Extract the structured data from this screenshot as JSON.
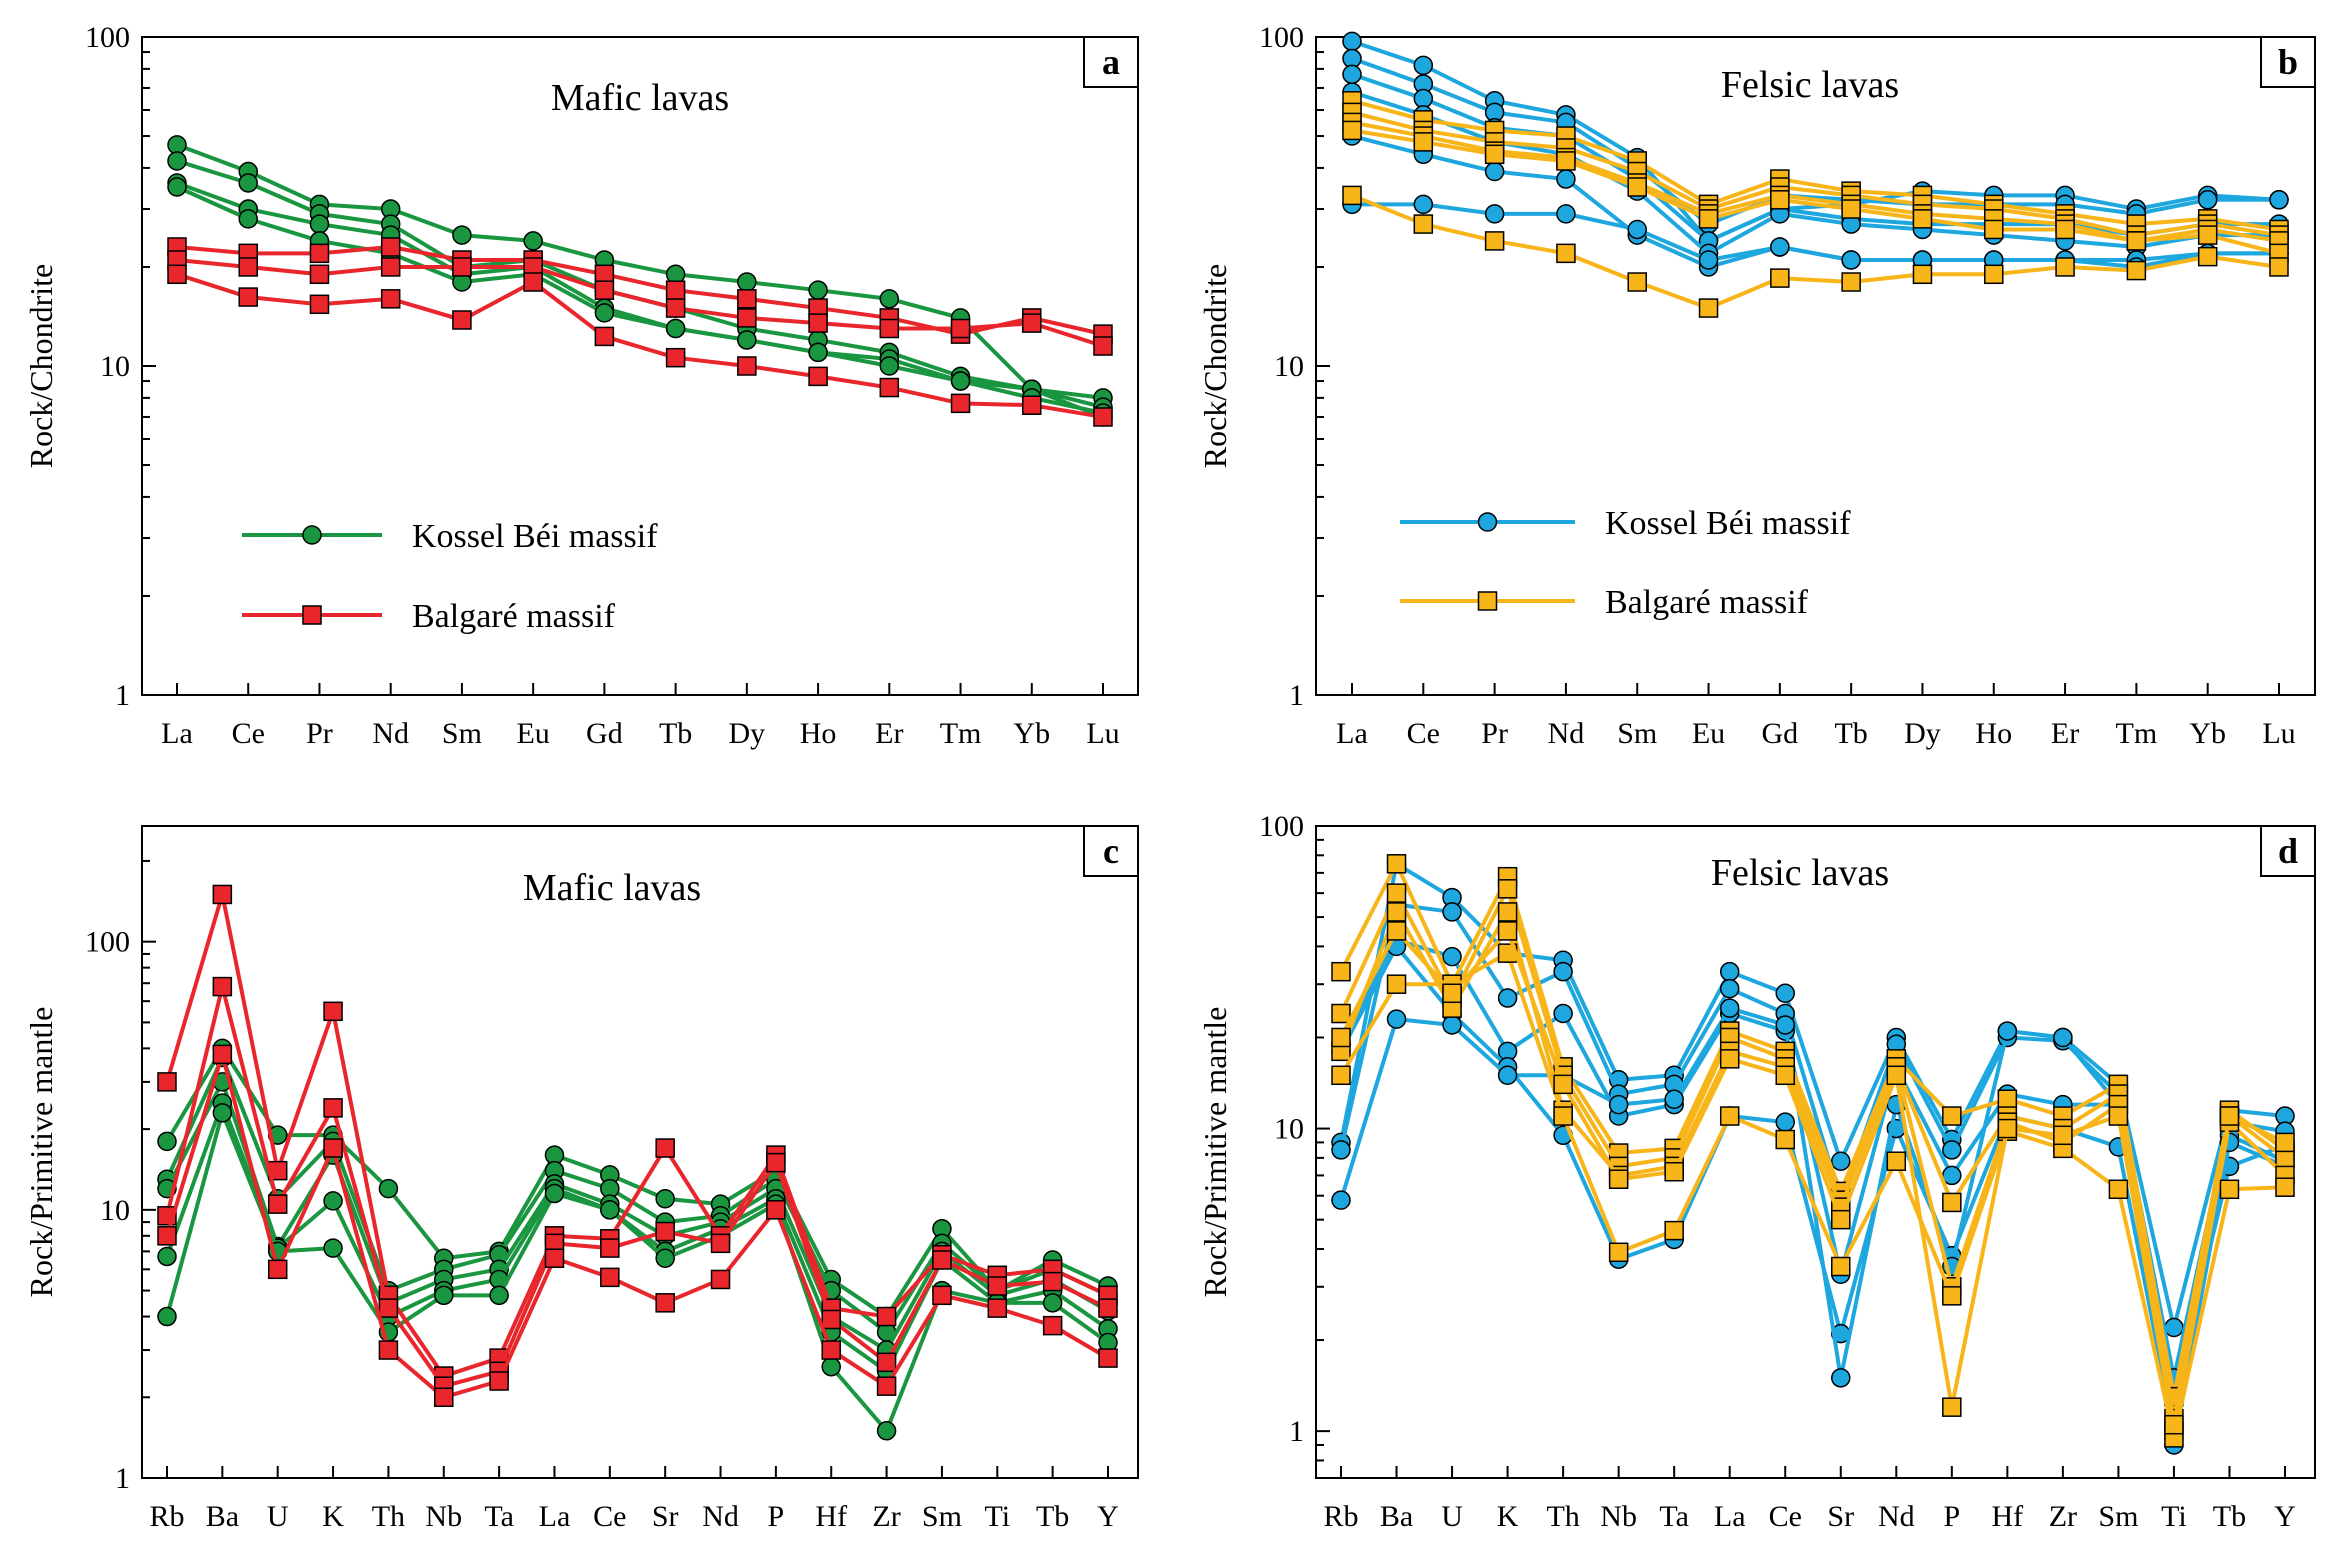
{
  "colors": {
    "green": "#1a9641",
    "red": "#e8262b",
    "blue": "#1ea7df",
    "yellow": "#f7b51a"
  },
  "chart_data": [
    {
      "panel": "a",
      "type": "line",
      "title": "Mafic lavas",
      "ylabel": "Rock/Chondrite",
      "yscale": "log",
      "ylim": [
        1,
        100
      ],
      "yticks": [
        "1",
        "10",
        "100"
      ],
      "categories": [
        "La",
        "Ce",
        "Pr",
        "Nd",
        "Sm",
        "Eu",
        "Gd",
        "Tb",
        "Dy",
        "Ho",
        "Er",
        "Tm",
        "Yb",
        "Lu"
      ],
      "legend": [
        {
          "label": "Kossel Béi massif",
          "color": "green",
          "marker": "circle"
        },
        {
          "label": "Balgaré massif",
          "color": "red",
          "marker": "square"
        }
      ],
      "series": [
        {
          "group": "Kossel Béi massif",
          "color": "green",
          "marker": "circle",
          "values": [
            47,
            39,
            31,
            30,
            25,
            24,
            21,
            19,
            18,
            17,
            16,
            14,
            8.5,
            7
          ]
        },
        {
          "group": "Kossel Béi massif",
          "color": "green",
          "marker": "circle",
          "values": [
            42,
            36,
            29,
            27,
            20,
            21,
            17,
            15,
            13,
            12,
            11,
            9.3,
            8.5,
            8
          ]
        },
        {
          "group": "Kossel Béi massif",
          "color": "green",
          "marker": "circle",
          "values": [
            36,
            30,
            27,
            25,
            19,
            20,
            15,
            13,
            12,
            11,
            10.5,
            9,
            8.5,
            7.5
          ]
        },
        {
          "group": "Kossel Béi massif",
          "color": "green",
          "marker": "circle",
          "values": [
            35,
            28,
            24,
            22,
            18,
            19,
            14.5,
            13,
            12,
            11,
            10,
            9,
            8,
            7.2
          ]
        },
        {
          "group": "Balgaré massif",
          "color": "red",
          "marker": "square",
          "values": [
            23,
            22,
            22,
            23,
            21,
            21,
            19,
            17,
            16,
            15,
            14,
            12.5,
            14,
            12.5
          ]
        },
        {
          "group": "Balgaré massif",
          "color": "red",
          "marker": "square",
          "values": [
            21,
            20,
            19,
            20,
            20,
            20,
            17,
            15,
            14,
            13.5,
            13,
            13,
            13.5,
            11.5
          ]
        },
        {
          "group": "Balgaré massif",
          "color": "red",
          "marker": "square",
          "values": [
            19,
            16.2,
            15.4,
            16,
            13.8,
            18,
            12.3,
            10.6,
            10,
            9.3,
            8.6,
            7.7,
            7.6,
            7
          ]
        }
      ]
    },
    {
      "panel": "b",
      "type": "line",
      "title": "Felsic lavas",
      "ylabel": "Rock/Chondrite",
      "yscale": "log",
      "ylim": [
        1,
        100
      ],
      "yticks": [
        "1",
        "10",
        "100"
      ],
      "categories": [
        "La",
        "Ce",
        "Pr",
        "Nd",
        "Sm",
        "Eu",
        "Gd",
        "Tb",
        "Dy",
        "Ho",
        "Er",
        "Tm",
        "Yb",
        "Lu"
      ],
      "legend": [
        {
          "label": "Kossel Béi massif",
          "color": "blue",
          "marker": "circle"
        },
        {
          "label": "Balgaré massif",
          "color": "yellow",
          "marker": "square"
        }
      ],
      "series": [
        {
          "group": "Kossel Béi massif",
          "color": "blue",
          "marker": "circle",
          "values": [
            97,
            82,
            64,
            58,
            43,
            24,
            30,
            31,
            34,
            33,
            33,
            30,
            33,
            32
          ]
        },
        {
          "group": "Kossel Béi massif",
          "color": "blue",
          "marker": "circle",
          "values": [
            86,
            72,
            59,
            55,
            40,
            27,
            33,
            32,
            31,
            31,
            31,
            29,
            32,
            32
          ]
        },
        {
          "group": "Kossel Béi massif",
          "color": "blue",
          "marker": "circle",
          "values": [
            77,
            65,
            53,
            50,
            37,
            24,
            30,
            28,
            27,
            27,
            27,
            25,
            27,
            27
          ]
        },
        {
          "group": "Kossel Béi massif",
          "color": "blue",
          "marker": "circle",
          "values": [
            68,
            58,
            48,
            44,
            34,
            22,
            29,
            27,
            26,
            25,
            24,
            23,
            25,
            25
          ]
        },
        {
          "group": "Kossel Béi massif",
          "color": "blue",
          "marker": "circle",
          "values": [
            50,
            44,
            39,
            37,
            25,
            20,
            23,
            21,
            21,
            21,
            21,
            21,
            22,
            22
          ]
        },
        {
          "group": "Kossel Béi massif",
          "color": "blue",
          "marker": "circle",
          "values": [
            31,
            31,
            29,
            29,
            26,
            21,
            23,
            21,
            21,
            21,
            21,
            20,
            22,
            22
          ]
        },
        {
          "group": "Balgaré massif",
          "color": "yellow",
          "marker": "square",
          "values": [
            64,
            56,
            52,
            50,
            42,
            31,
            37,
            34,
            33,
            31,
            29,
            27,
            28,
            26
          ]
        },
        {
          "group": "Balgaré massif",
          "color": "yellow",
          "marker": "square",
          "values": [
            59,
            52,
            48,
            46,
            39,
            30,
            35,
            33,
            31,
            30,
            28,
            25,
            27,
            25
          ]
        },
        {
          "group": "Balgaré massif",
          "color": "yellow",
          "marker": "square",
          "values": [
            55,
            50,
            45,
            43,
            36,
            29,
            33,
            31,
            29,
            28,
            27,
            24,
            26,
            24
          ]
        },
        {
          "group": "Balgaré massif",
          "color": "yellow",
          "marker": "square",
          "values": [
            52,
            48,
            44,
            42,
            35,
            28,
            32,
            30,
            28,
            26,
            26,
            24,
            25,
            22
          ]
        },
        {
          "group": "Balgaré massif",
          "color": "yellow",
          "marker": "square",
          "values": [
            33,
            27,
            24,
            22,
            18,
            15,
            18.5,
            18,
            19,
            19,
            20,
            19.5,
            21.5,
            20
          ]
        }
      ]
    },
    {
      "panel": "c",
      "type": "line",
      "title": "Mafic lavas",
      "ylabel": "Rock/Primitive mantle",
      "yscale": "log",
      "ylim": [
        1,
        270
      ],
      "yticks": [
        "1",
        "10",
        "100"
      ],
      "categories": [
        "Rb",
        "Ba",
        "U",
        "K",
        "Th",
        "Nb",
        "Ta",
        "La",
        "Ce",
        "Sr",
        "Nd",
        "P",
        "Hf",
        "Zr",
        "Sm",
        "Ti",
        "Tb",
        "Y"
      ],
      "legend": [],
      "series": [
        {
          "group": "Kossel Béi massif",
          "color": "green",
          "marker": "circle",
          "values": [
            18,
            40,
            19,
            19,
            12,
            6.6,
            7,
            16,
            13.5,
            11,
            10.5,
            14,
            5.5,
            4,
            8.5,
            5,
            6.5,
            5.2
          ]
        },
        {
          "group": "Kossel Béi massif",
          "color": "green",
          "marker": "circle",
          "values": [
            13,
            37,
            11,
            18,
            5,
            6,
            6.8,
            14,
            12,
            9,
            9.5,
            13,
            5,
            3.5,
            7.5,
            5,
            6,
            4.8
          ]
        },
        {
          "group": "Kossel Béi massif",
          "color": "green",
          "marker": "circle",
          "values": [
            12,
            30,
            7.3,
            16,
            4.5,
            5.5,
            6,
            12.5,
            10.5,
            8,
            9,
            12,
            4,
            3,
            7,
            4.8,
            5.5,
            4.2
          ]
        },
        {
          "group": "Kossel Béi massif",
          "color": "green",
          "marker": "circle",
          "values": [
            6.7,
            25,
            7.2,
            10.8,
            4,
            5,
            5.5,
            12,
            10,
            7,
            8.5,
            11,
            3.5,
            2.5,
            6.5,
            4.5,
            5,
            3.6
          ]
        },
        {
          "group": "Kossel Béi massif",
          "color": "green",
          "marker": "circle",
          "values": [
            4,
            23,
            7,
            7.2,
            3.5,
            4.8,
            4.8,
            11.5,
            10,
            6.6,
            8,
            10.5,
            2.6,
            1.5,
            5,
            4.5,
            4.5,
            3.2
          ]
        },
        {
          "group": "Balgaré massif",
          "color": "red",
          "marker": "square",
          "values": [
            30,
            150,
            14,
            55,
            4.8,
            2.4,
            2.8,
            8,
            7.8,
            17,
            8,
            16,
            4.3,
            4,
            6.8,
            5.7,
            6,
            4.8
          ]
        },
        {
          "group": "Balgaré massif",
          "color": "red",
          "marker": "square",
          "values": [
            9.5,
            68,
            10.5,
            24,
            4.3,
            2.2,
            2.5,
            7.5,
            7.2,
            8.3,
            7.5,
            15,
            3.9,
            2.7,
            6.5,
            5.2,
            5.4,
            4.3
          ]
        },
        {
          "group": "Balgaré massif",
          "color": "red",
          "marker": "square",
          "values": [
            8,
            38,
            6,
            17,
            3,
            2,
            2.3,
            6.6,
            5.6,
            4.5,
            5.5,
            10,
            3,
            2.2,
            4.8,
            4.3,
            3.7,
            2.8
          ]
        }
      ]
    },
    {
      "panel": "d",
      "type": "line",
      "title": "Felsic lavas",
      "ylabel": "Rock/Primitive mantle",
      "yscale": "log",
      "ylim": [
        0.7,
        100
      ],
      "yticks": [
        "1",
        "10",
        "100"
      ],
      "categories": [
        "Rb",
        "Ba",
        "U",
        "K",
        "Th",
        "Nb",
        "Ta",
        "La",
        "Ce",
        "Sr",
        "Nd",
        "P",
        "Hf",
        "Zr",
        "Sm",
        "Ti",
        "Tb",
        "Y"
      ],
      "legend": [],
      "series": [
        {
          "group": "Kossel Béi massif",
          "color": "blue",
          "marker": "circle",
          "values": [
            9,
            75,
            58,
            38,
            36,
            14.5,
            15,
            33,
            28,
            7.8,
            20,
            9.2,
            21,
            20,
            14,
            2.2,
            11.5,
            11
          ]
        },
        {
          "group": "Kossel Béi massif",
          "color": "blue",
          "marker": "circle",
          "values": [
            8.5,
            55,
            52,
            27,
            33,
            13,
            14,
            29,
            24,
            5.8,
            19,
            8.5,
            20,
            19.5,
            13,
            1.5,
            10.5,
            9.8
          ]
        },
        {
          "group": "Kossel Béi massif",
          "color": "blue",
          "marker": "circle",
          "values": [
            19,
            42,
            37,
            18,
            24,
            11,
            12,
            24,
            21,
            3.3,
            16,
            7,
            13,
            12,
            12,
            1.3,
            7.5,
            8.8
          ]
        },
        {
          "group": "Kossel Béi massif",
          "color": "blue",
          "marker": "circle",
          "values": [
            18,
            40,
            24,
            16,
            9.5,
            3.7,
            4.3,
            11,
            10.5,
            2.1,
            10,
            3.8,
            11,
            10,
            8.7,
            1,
            9.5,
            7.8
          ]
        },
        {
          "group": "Kossel Béi massif",
          "color": "blue",
          "marker": "circle",
          "values": [
            5.8,
            23,
            22,
            15,
            15,
            12,
            12.5,
            25,
            22,
            1.5,
            12,
            3.5,
            21,
            20,
            12,
            0.9,
            9,
            7.5
          ]
        },
        {
          "group": "Balgaré massif",
          "color": "yellow",
          "marker": "square",
          "values": [
            33,
            75,
            30,
            68,
            16,
            8.3,
            8.6,
            21,
            18,
            6.2,
            17,
            11,
            12.5,
            11,
            14,
            1.3,
            11.5,
            8.5
          ]
        },
        {
          "group": "Balgaré massif",
          "color": "yellow",
          "marker": "square",
          "values": [
            24,
            60,
            27,
            62,
            15,
            7.5,
            8,
            20,
            17,
            5.8,
            16,
            5.7,
            11,
            10,
            13,
            1.1,
            11,
            8
          ]
        },
        {
          "group": "Balgaré massif",
          "color": "yellow",
          "marker": "square",
          "values": [
            18,
            52,
            25,
            52,
            11.5,
            7,
            7.5,
            18,
            16,
            5.5,
            16,
            3,
            10.5,
            9,
            12,
            1,
            10.5,
            7
          ]
        },
        {
          "group": "Balgaré massif",
          "color": "yellow",
          "marker": "square",
          "values": [
            15,
            30,
            30,
            38,
            11,
            3.9,
            4.6,
            11,
            9.2,
            3.5,
            7.8,
            2.8,
            9.8,
            8.6,
            6.3,
            0.95,
            6.3,
            6.4
          ]
        },
        {
          "group": "Balgaré massif",
          "color": "yellow",
          "marker": "square",
          "values": [
            20,
            45,
            28,
            45,
            14,
            6.8,
            7.2,
            17,
            15,
            5,
            15,
            1.2,
            10,
            9.5,
            11,
            1.05,
            11,
            9
          ]
        }
      ]
    }
  ]
}
